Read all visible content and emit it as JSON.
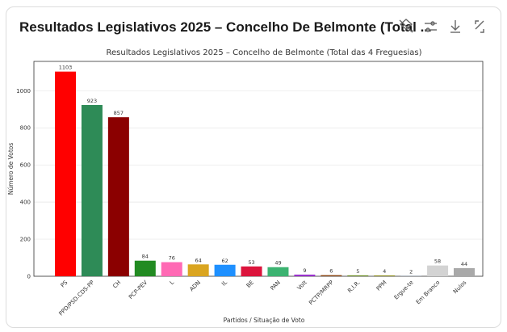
{
  "header": {
    "title": "Resultados Legislativos 2025 – Concelho De Belmonte (Total ..."
  },
  "chart_data": {
    "type": "bar",
    "title": "Resultados Legislativos 2025 – Concelho de Belmonte (Total das 4 Freguesias)",
    "x_label": "Partidos / Situação de Voto",
    "y_label": "Número de Votos",
    "categories": [
      "PS",
      "PPD/PSD.CDS-PP",
      "CH",
      "PCP-PEV",
      "L",
      "ADN",
      "IL",
      "BE",
      "PAN",
      "Volt",
      "PCTP/MRPP",
      "R.I.R.",
      "PPM",
      "Ergue-te",
      "Em Branco",
      "Nulos"
    ],
    "values": [
      1103,
      923,
      857,
      84,
      76,
      64,
      62,
      53,
      49,
      9,
      6,
      5,
      4,
      2,
      58,
      44
    ],
    "colors": [
      "#ff0000",
      "#2e8b57",
      "#8b0000",
      "#228b22",
      "#ff69b4",
      "#daa520",
      "#1e90ff",
      "#dc143c",
      "#3cb371",
      "#9932cc",
      "#8b4513",
      "#6b8e23",
      "#808000",
      "#708090",
      "#d3d3d3",
      "#a9a9a9"
    ],
    "ylim": [
      0,
      1158
    ],
    "yticks": [
      0,
      200,
      400,
      600,
      800,
      1000
    ],
    "grid": true
  }
}
